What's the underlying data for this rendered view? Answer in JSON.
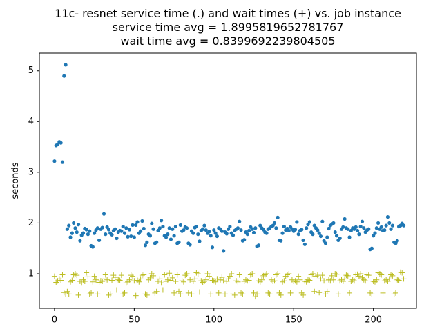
{
  "chart_data": {
    "type": "scatter",
    "title": [
      "11c- resnet service time (.) and wait times (+) vs. job instance",
      "service time avg = 1.8995819652781767",
      "wait time avg = 0.8399692239804505"
    ],
    "ylabel": "seconds",
    "xlim": [
      -9.5,
      227
    ],
    "ylim": [
      0.32,
      5.35
    ],
    "xticks": [
      0,
      50,
      100,
      150,
      200
    ],
    "yticks": [
      1,
      2,
      3,
      4,
      5
    ],
    "grid": false,
    "x": [
      0,
      1,
      2,
      3,
      4,
      5,
      6,
      7,
      8,
      9,
      10,
      11,
      12,
      13,
      14,
      15,
      16,
      17,
      18,
      19,
      20,
      21,
      22,
      23,
      24,
      25,
      26,
      27,
      28,
      29,
      30,
      31,
      32,
      33,
      34,
      35,
      36,
      37,
      38,
      39,
      40,
      41,
      42,
      43,
      44,
      45,
      46,
      47,
      48,
      49,
      50,
      51,
      52,
      53,
      54,
      55,
      56,
      57,
      58,
      59,
      60,
      61,
      62,
      63,
      64,
      65,
      66,
      67,
      68,
      69,
      70,
      71,
      72,
      73,
      74,
      75,
      76,
      77,
      78,
      79,
      80,
      81,
      82,
      83,
      84,
      85,
      86,
      87,
      88,
      89,
      90,
      91,
      92,
      93,
      94,
      95,
      96,
      97,
      98,
      99,
      100,
      101,
      102,
      103,
      104,
      105,
      106,
      107,
      108,
      109,
      110,
      111,
      112,
      113,
      114,
      115,
      116,
      117,
      118,
      119,
      120,
      121,
      122,
      123,
      124,
      125,
      126,
      127,
      128,
      129,
      130,
      131,
      132,
      133,
      134,
      135,
      136,
      137,
      138,
      139,
      140,
      141,
      142,
      143,
      144,
      145,
      146,
      147,
      148,
      149,
      150,
      151,
      152,
      153,
      154,
      155,
      156,
      157,
      158,
      159,
      160,
      161,
      162,
      163,
      164,
      165,
      166,
      167,
      168,
      169,
      170,
      171,
      172,
      173,
      174,
      175,
      176,
      177,
      178,
      179,
      180,
      181,
      182,
      183,
      184,
      185,
      186,
      187,
      188,
      189,
      190,
      191,
      192,
      193,
      194,
      195,
      196,
      197,
      198,
      199,
      200,
      201,
      202,
      203,
      204,
      205,
      206,
      207,
      208,
      209,
      210,
      211,
      212,
      213,
      214,
      215,
      216,
      217,
      218,
      219
    ],
    "series": [
      {
        "color": "#1f77b4",
        "marker": "circle",
        "values": [
          3.22,
          3.53,
          3.55,
          3.6,
          3.58,
          3.2,
          4.9,
          5.12,
          1.88,
          1.95,
          1.72,
          1.8,
          2.0,
          1.9,
          1.82,
          1.97,
          1.65,
          1.76,
          1.8,
          1.89,
          1.87,
          1.78,
          1.84,
          1.55,
          1.53,
          1.8,
          1.86,
          1.9,
          1.66,
          1.88,
          1.91,
          2.18,
          1.78,
          1.92,
          1.87,
          1.8,
          1.77,
          1.85,
          1.88,
          1.7,
          1.82,
          1.85,
          1.84,
          1.93,
          1.8,
          1.9,
          1.73,
          1.87,
          1.74,
          1.96,
          1.72,
          1.96,
          2.02,
          1.8,
          1.84,
          2.04,
          1.89,
          1.56,
          1.62,
          1.78,
          1.75,
          1.99,
          1.88,
          1.6,
          1.62,
          1.85,
          1.9,
          2.05,
          1.93,
          1.75,
          1.72,
          1.78,
          1.9,
          1.68,
          1.88,
          1.75,
          1.93,
          1.6,
          1.62,
          1.96,
          1.84,
          1.86,
          1.92,
          1.9,
          1.6,
          1.57,
          1.84,
          1.8,
          1.91,
          1.93,
          1.78,
          1.64,
          1.85,
          1.88,
          1.95,
          1.86,
          1.8,
          1.83,
          1.75,
          1.52,
          1.86,
          1.8,
          1.74,
          1.9,
          1.88,
          1.84,
          1.45,
          1.82,
          1.79,
          1.88,
          1.93,
          1.8,
          1.76,
          1.85,
          1.88,
          1.9,
          2.03,
          1.86,
          1.65,
          1.67,
          1.82,
          1.78,
          1.85,
          1.92,
          1.88,
          1.81,
          1.9,
          1.54,
          1.56,
          1.95,
          1.9,
          1.87,
          1.82,
          1.8,
          1.88,
          1.9,
          1.93,
          1.95,
          2.0,
          1.9,
          2.11,
          1.66,
          1.65,
          1.8,
          1.93,
          1.86,
          1.89,
          1.85,
          1.92,
          1.88,
          1.84,
          1.87,
          2.02,
          1.78,
          1.85,
          1.87,
          1.66,
          1.58,
          1.9,
          1.97,
          2.02,
          1.82,
          1.78,
          1.95,
          1.9,
          1.86,
          1.8,
          1.74,
          2.03,
          1.65,
          1.6,
          1.72,
          1.89,
          1.95,
          1.98,
          2.0,
          1.82,
          1.75,
          1.66,
          1.7,
          1.88,
          1.92,
          2.08,
          1.9,
          1.88,
          1.72,
          1.85,
          1.9,
          1.88,
          1.92,
          1.85,
          1.78,
          1.93,
          2.03,
          1.9,
          1.82,
          1.86,
          1.88,
          1.48,
          1.5,
          1.75,
          1.8,
          1.9,
          2.0,
          1.88,
          1.92,
          1.85,
          1.86,
          1.95,
          2.12,
          2.0,
          1.88,
          1.95,
          1.62,
          1.6,
          1.65,
          1.93,
          1.95,
          1.99,
          1.95
        ]
      },
      {
        "color": "#bcbd22",
        "marker": "plus",
        "values": [
          0.95,
          0.83,
          0.86,
          0.9,
          0.87,
          0.98,
          0.63,
          0.6,
          0.65,
          0.6,
          0.84,
          0.87,
          0.98,
          1.0,
          0.97,
          0.58,
          0.85,
          0.82,
          0.88,
          0.85,
          1.02,
          0.94,
          0.6,
          0.62,
          0.84,
          0.95,
          0.88,
          0.6,
          0.83,
          0.86,
          0.85,
          0.9,
          0.98,
          0.88,
          0.58,
          0.6,
          0.87,
          0.97,
          0.93,
          0.68,
          0.88,
          0.87,
          0.97,
          0.6,
          0.62,
          0.82,
          0.84,
          0.88,
          0.97,
          0.95,
          0.86,
          0.57,
          0.87,
          0.84,
          0.9,
          0.97,
          0.98,
          0.6,
          0.58,
          0.88,
          0.92,
          1.0,
          0.96,
          0.62,
          0.65,
          0.85,
          0.9,
          0.82,
          0.68,
          0.98,
          0.85,
          0.88,
          1.01,
          0.87,
          0.92,
          0.62,
          0.85,
          0.98,
          0.65,
          0.6,
          0.86,
          0.84,
          0.97,
          1.0,
          0.62,
          0.88,
          0.6,
          0.85,
          0.9,
          1.02,
          1.0,
          0.64,
          0.86,
          0.83,
          0.85,
          0.88,
          1.0,
          0.95,
          0.6,
          0.87,
          0.86,
          0.84,
          0.9,
          0.62,
          0.88,
          0.93,
          0.86,
          0.6,
          0.85,
          0.9,
          0.95,
          1.0,
          0.6,
          0.58,
          0.86,
          0.84,
          0.98,
          0.62,
          0.6,
          0.85,
          0.88,
          0.86,
          0.87,
          0.98,
          1.0,
          0.62,
          0.55,
          0.6,
          0.86,
          0.84,
          0.88,
          0.96,
          0.98,
          1.0,
          0.62,
          0.6,
          0.88,
          0.85,
          0.86,
          0.98,
          1.0,
          0.62,
          0.58,
          0.84,
          0.86,
          0.95,
          0.98,
          1.0,
          0.62,
          0.88,
          0.85,
          0.86,
          0.84,
          0.95,
          0.88,
          0.62,
          0.58,
          0.85,
          0.84,
          0.88,
          0.87,
          0.98,
          1.0,
          0.65,
          0.95,
          0.97,
          0.63,
          0.9,
          0.97,
          0.86,
          0.6,
          0.65,
          0.88,
          0.86,
          0.96,
          0.88,
          1.0,
          0.99,
          0.6,
          0.86,
          0.88,
          0.85,
          0.9,
          0.97,
          0.96,
          0.62,
          0.85,
          0.88,
          0.86,
          0.98,
          0.99,
          0.95,
          1.0,
          0.92,
          0.88,
          0.86,
          0.98,
          0.97,
          0.62,
          0.6,
          0.85,
          0.84,
          0.88,
          1.02,
          1.0,
          0.98,
          0.62,
          0.86,
          0.88,
          0.85,
          0.9,
          0.98,
          0.96,
          0.6,
          0.62,
          0.88,
          0.87,
          1.03,
          1.02,
          0.9
        ]
      }
    ]
  }
}
